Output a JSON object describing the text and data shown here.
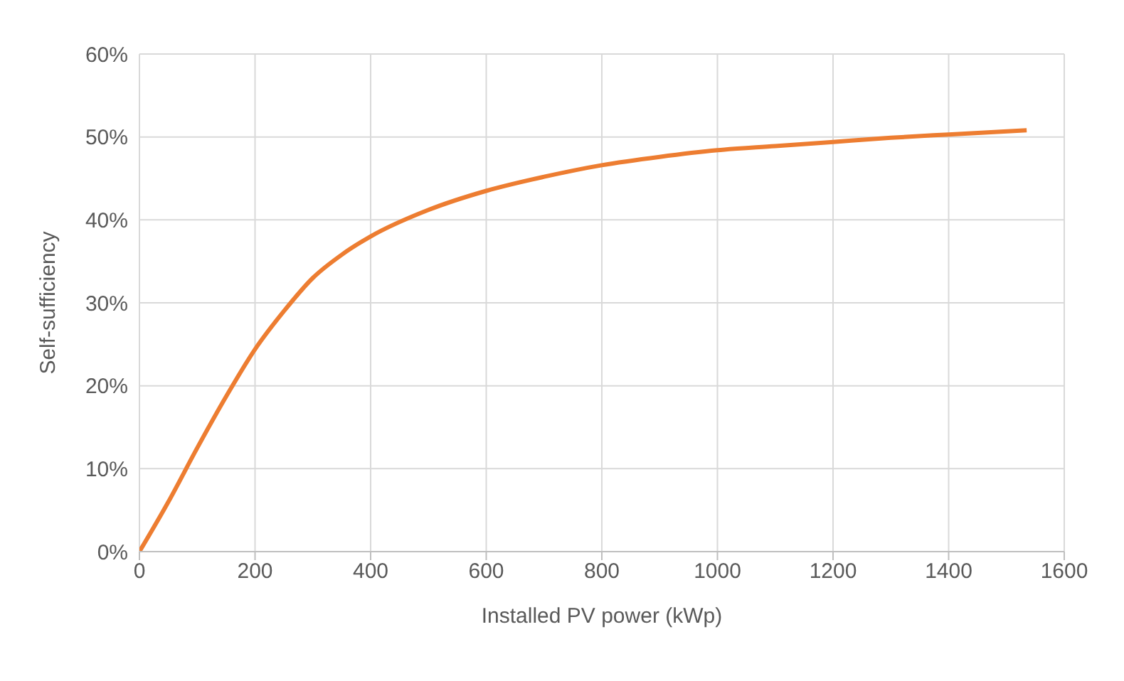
{
  "chart_data": {
    "type": "line",
    "xlabel": "Installed PV power (kWp)",
    "ylabel": "Self-sufficiency",
    "x": [
      0,
      50,
      100,
      150,
      200,
      250,
      300,
      350,
      400,
      500,
      600,
      700,
      800,
      900,
      1000,
      1100,
      1200,
      1300,
      1400,
      1535
    ],
    "series": [
      {
        "color": "#ed7d31",
        "values": [
          0,
          6,
          12.5,
          18.7,
          24.4,
          29,
          33,
          35.8,
          38,
          41.2,
          43.5,
          45.2,
          46.6,
          47.6,
          48.4,
          48.9,
          49.4,
          49.9,
          50.3,
          50.8
        ]
      }
    ],
    "xlim": [
      0,
      1600
    ],
    "xticks": [
      0,
      200,
      400,
      600,
      800,
      1000,
      1200,
      1400,
      1600
    ],
    "ylim": [
      0,
      60
    ],
    "yticks": [
      {
        "value": 0,
        "label": "0%"
      },
      {
        "value": 10,
        "label": "10%"
      },
      {
        "value": 20,
        "label": "20%"
      },
      {
        "value": 30,
        "label": "30%"
      },
      {
        "value": 40,
        "label": "40%"
      },
      {
        "value": 50,
        "label": "50%"
      },
      {
        "value": 60,
        "label": "60%"
      }
    ],
    "grid": true,
    "marker": "none",
    "line_style": "solid"
  }
}
